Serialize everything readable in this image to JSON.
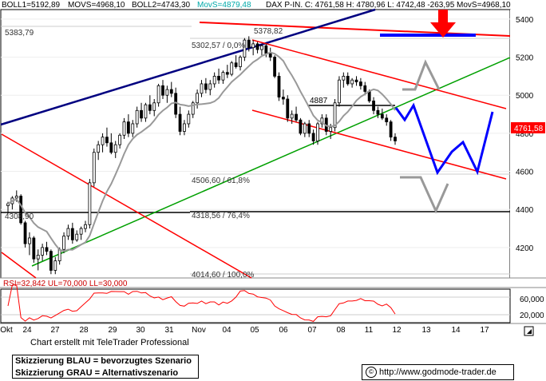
{
  "header": {
    "boll1": "BOLL1=5192,89",
    "movs": "MOVS=4968,10",
    "boll2": "BOLL2=4743,30",
    "movs_hl": "MovS=4879,48",
    "dax": "DAX P-IN. C: 4761,58 H: 4780,96 L: 4742,48 -263,95 MovS=4968,10"
  },
  "price_label": "4761,58",
  "rsi_label": "RSI=32,842 UL=70,000 LL=30,000",
  "credit": "Chart erstellt mit TeleTrader Professional",
  "legend": {
    "line1": "Skizzierung BLAU = bevorzugtes Szenario",
    "line2": "Skizzierung GRAU = Alternativszenario"
  },
  "url": "http://www.godmode-trader.de",
  "colors": {
    "red": "#ff0000",
    "blue": "#0000ff",
    "navy": "#000080",
    "green": "#00a000",
    "gray": "#888888",
    "ma": "#999999"
  },
  "chart_data": {
    "type": "candlestick",
    "y_axis": {
      "ticks": [
        4200,
        4400,
        4600,
        4800,
        5000,
        5200,
        5400
      ],
      "ylim": [
        4040,
        5450
      ]
    },
    "x_axis": {
      "ticks": [
        "Okt",
        "24",
        "27",
        "28",
        "29",
        "30",
        "31",
        "Nov",
        "04",
        "05",
        "06",
        "07",
        "08",
        "11",
        "12",
        "13",
        "14",
        "17"
      ]
    },
    "annotations": [
      "5383,79",
      "5302,57 / 0,0%",
      "5378,82",
      "4887",
      "4506,60 / 61,8%",
      "4308,90",
      "4318,56 / 76,4%",
      "4014,60 / 100,0%"
    ],
    "candles": [
      [
        4420,
        4440,
        4380,
        4430
      ],
      [
        4430,
        4470,
        4400,
        4460
      ],
      [
        4460,
        4500,
        4440,
        4470
      ],
      [
        4470,
        4480,
        4320,
        4330
      ],
      [
        4330,
        4340,
        4200,
        4220
      ],
      [
        4220,
        4280,
        4160,
        4250
      ],
      [
        4250,
        4260,
        4120,
        4140
      ],
      [
        4140,
        4190,
        4080,
        4160
      ],
      [
        4160,
        4220,
        4130,
        4200
      ],
      [
        4200,
        4230,
        4160,
        4180
      ],
      [
        4180,
        4190,
        4060,
        4080
      ],
      [
        4080,
        4150,
        4060,
        4130
      ],
      [
        4130,
        4200,
        4110,
        4190
      ],
      [
        4190,
        4280,
        4170,
        4260
      ],
      [
        4260,
        4320,
        4240,
        4300
      ],
      [
        4300,
        4330,
        4220,
        4240
      ],
      [
        4240,
        4290,
        4230,
        4270
      ],
      [
        4270,
        4310,
        4240,
        4300
      ],
      [
        4300,
        4340,
        4280,
        4320
      ],
      [
        4320,
        4560,
        4300,
        4540
      ],
      [
        4540,
        4720,
        4520,
        4700
      ],
      [
        4700,
        4760,
        4660,
        4740
      ],
      [
        4740,
        4800,
        4700,
        4780
      ],
      [
        4780,
        4830,
        4730,
        4750
      ],
      [
        4750,
        4800,
        4690,
        4700
      ],
      [
        4700,
        4760,
        4670,
        4740
      ],
      [
        4740,
        4800,
        4720,
        4790
      ],
      [
        4790,
        4880,
        4770,
        4860
      ],
      [
        4860,
        4900,
        4780,
        4800
      ],
      [
        4800,
        4870,
        4780,
        4850
      ],
      [
        4850,
        4940,
        4830,
        4920
      ],
      [
        4920,
        4960,
        4860,
        4880
      ],
      [
        4880,
        4960,
        4860,
        4950
      ],
      [
        4950,
        5000,
        4900,
        4920
      ],
      [
        4920,
        4980,
        4890,
        4960
      ],
      [
        4960,
        5060,
        4940,
        5050
      ],
      [
        5050,
        5080,
        4980,
        5000
      ],
      [
        5000,
        5050,
        4960,
        5030
      ],
      [
        5030,
        5070,
        4990,
        5010
      ],
      [
        5010,
        5040,
        4880,
        4900
      ],
      [
        4900,
        4940,
        4790,
        4810
      ],
      [
        4810,
        4870,
        4790,
        4850
      ],
      [
        4850,
        4920,
        4830,
        4900
      ],
      [
        4900,
        4970,
        4880,
        4960
      ],
      [
        4960,
        5030,
        4930,
        5010
      ],
      [
        5010,
        5080,
        4990,
        5060
      ],
      [
        5060,
        5090,
        5010,
        5030
      ],
      [
        5030,
        5080,
        5000,
        5060
      ],
      [
        5060,
        5120,
        5040,
        5100
      ],
      [
        5100,
        5140,
        5060,
        5080
      ],
      [
        5080,
        5130,
        5060,
        5120
      ],
      [
        5120,
        5160,
        5090,
        5110
      ],
      [
        5110,
        5180,
        5100,
        5170
      ],
      [
        5170,
        5210,
        5140,
        5150
      ],
      [
        5150,
        5210,
        5130,
        5200
      ],
      [
        5200,
        5300,
        5180,
        5290
      ],
      [
        5290,
        5310,
        5230,
        5250
      ],
      [
        5250,
        5290,
        5210,
        5270
      ],
      [
        5270,
        5280,
        5220,
        5240
      ],
      [
        5240,
        5270,
        5210,
        5260
      ],
      [
        5260,
        5270,
        5200,
        5220
      ],
      [
        5220,
        5250,
        5180,
        5200
      ],
      [
        5200,
        5210,
        5090,
        5100
      ],
      [
        5100,
        5120,
        4970,
        4990
      ],
      [
        4990,
        5030,
        4950,
        4980
      ],
      [
        4980,
        5000,
        4860,
        4880
      ],
      [
        4880,
        4920,
        4850,
        4900
      ],
      [
        4900,
        4940,
        4860,
        4870
      ],
      [
        4870,
        4880,
        4790,
        4800
      ],
      [
        4800,
        4860,
        4780,
        4850
      ],
      [
        4850,
        4870,
        4780,
        4800
      ],
      [
        4800,
        4820,
        4740,
        4760
      ],
      [
        4760,
        4860,
        4740,
        4850
      ],
      [
        4850,
        4900,
        4830,
        4880
      ],
      [
        4880,
        4900,
        4790,
        4810
      ],
      [
        4810,
        4850,
        4770,
        4830
      ],
      [
        4830,
        4980,
        4810,
        4960
      ],
      [
        4960,
        5100,
        4940,
        5080
      ],
      [
        5080,
        5120,
        5040,
        5100
      ],
      [
        5100,
        5120,
        5050,
        5060
      ],
      [
        5060,
        5090,
        5040,
        5080
      ],
      [
        5080,
        5100,
        5050,
        5070
      ],
      [
        5070,
        5090,
        5030,
        5050
      ],
      [
        5050,
        5070,
        5000,
        5020
      ],
      [
        5020,
        5030,
        4960,
        4970
      ],
      [
        4970,
        4990,
        4900,
        4920
      ],
      [
        4920,
        4940,
        4880,
        4900
      ],
      [
        4900,
        4930,
        4870,
        4880
      ],
      [
        4880,
        4900,
        4840,
        4860
      ],
      [
        4860,
        4870,
        4760,
        4780
      ],
      [
        4780,
        4800,
        4740,
        4760
      ]
    ]
  }
}
